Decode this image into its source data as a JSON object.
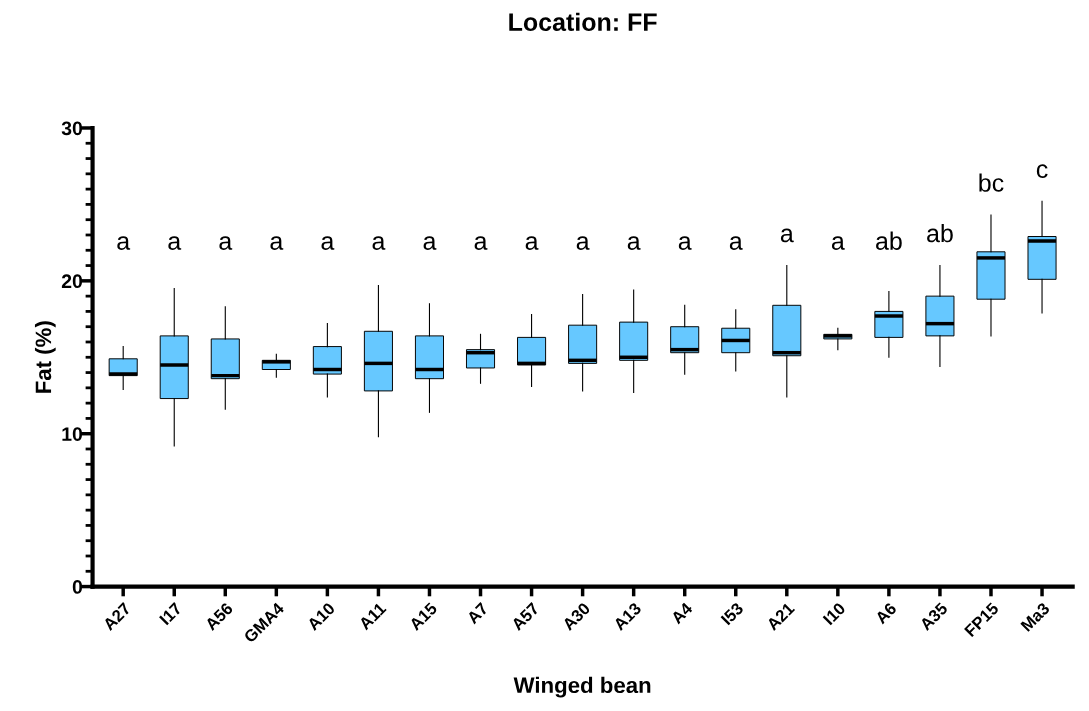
{
  "chart_data": {
    "type": "box",
    "title": "Location: FF",
    "xlabel": "Winged bean",
    "ylabel": "Fat (%)",
    "categories": [
      "A27",
      "I17",
      "A56",
      "GMA4",
      "A10",
      "A11",
      "A15",
      "A7",
      "A57",
      "A30",
      "A13",
      "A4",
      "I53",
      "A21",
      "I10",
      "A6",
      "A35",
      "FP15",
      "Ma3"
    ],
    "color": "#66c8ff",
    "boxes": [
      {
        "low": 12.9,
        "q1": 13.8,
        "median": 13.9,
        "q3": 14.9,
        "high": 15.7
      },
      {
        "low": 9.2,
        "q1": 12.3,
        "median": 14.5,
        "q3": 16.4,
        "high": 19.5
      },
      {
        "low": 11.6,
        "q1": 13.6,
        "median": 13.8,
        "q3": 16.2,
        "high": 18.3
      },
      {
        "low": 13.7,
        "q1": 14.2,
        "median": 14.7,
        "q3": 14.8,
        "high": 15.2
      },
      {
        "low": 12.4,
        "q1": 13.9,
        "median": 14.2,
        "q3": 15.7,
        "high": 17.2
      },
      {
        "low": 9.8,
        "q1": 12.8,
        "median": 14.6,
        "q3": 16.7,
        "high": 19.7
      },
      {
        "low": 11.4,
        "q1": 13.6,
        "median": 14.2,
        "q3": 16.4,
        "high": 18.5
      },
      {
        "low": 13.3,
        "q1": 14.3,
        "median": 15.3,
        "q3": 15.5,
        "high": 16.5
      },
      {
        "low": 13.1,
        "q1": 14.5,
        "median": 14.6,
        "q3": 16.3,
        "high": 17.8
      },
      {
        "low": 12.8,
        "q1": 14.6,
        "median": 14.8,
        "q3": 17.1,
        "high": 19.1
      },
      {
        "low": 12.7,
        "q1": 14.8,
        "median": 15.0,
        "q3": 17.3,
        "high": 19.4
      },
      {
        "low": 13.9,
        "q1": 15.3,
        "median": 15.5,
        "q3": 17.0,
        "high": 18.4
      },
      {
        "low": 14.1,
        "q1": 15.3,
        "median": 16.1,
        "q3": 16.9,
        "high": 18.1
      },
      {
        "low": 12.4,
        "q1": 15.1,
        "median": 15.3,
        "q3": 18.4,
        "high": 21.0
      },
      {
        "low": 15.5,
        "q1": 16.2,
        "median": 16.4,
        "q3": 16.5,
        "high": 16.9
      },
      {
        "low": 15.0,
        "q1": 16.3,
        "median": 17.7,
        "q3": 18.0,
        "high": 19.3
      },
      {
        "low": 14.4,
        "q1": 16.4,
        "median": 17.2,
        "q3": 19.0,
        "high": 21.0
      },
      {
        "low": 16.4,
        "q1": 18.8,
        "median": 21.5,
        "q3": 21.9,
        "high": 24.3
      },
      {
        "low": 17.9,
        "q1": 20.1,
        "median": 22.6,
        "q3": 22.9,
        "high": 25.2
      }
    ],
    "ylim": [
      0,
      30
    ],
    "yticks": [
      0,
      {
        "value": 1,
        "label": null
      },
      {
        "value": 2,
        "label": null
      },
      {
        "value": 3,
        "label": null
      },
      {
        "value": 4,
        "label": null
      },
      {
        "value": 5,
        "label": null
      },
      {
        "value": 6,
        "label": null
      },
      {
        "value": 7,
        "label": null
      },
      {
        "value": 8,
        "label": null
      },
      {
        "value": 9,
        "label": null
      },
      10,
      {
        "value": 11,
        "label": null
      },
      {
        "value": 12,
        "label": null
      },
      {
        "value": 13,
        "label": null
      },
      {
        "value": 14,
        "label": null
      },
      {
        "value": 15,
        "label": null
      },
      {
        "value": 16,
        "label": null
      },
      {
        "value": 17,
        "label": null
      },
      {
        "value": 18,
        "label": null
      },
      {
        "value": 19,
        "label": null
      },
      20,
      {
        "value": 21,
        "label": null
      },
      {
        "value": 22,
        "label": null
      },
      {
        "value": 23,
        "label": null
      },
      {
        "value": 24,
        "label": null
      },
      {
        "value": 25,
        "label": null
      },
      {
        "value": 26,
        "label": null
      },
      {
        "value": 27,
        "label": null
      },
      {
        "value": 28,
        "label": null
      },
      {
        "value": 29,
        "label": null
      },
      30
    ],
    "grid": false,
    "annotations": [
      "a",
      "a",
      "a",
      "a",
      "a",
      "a",
      "a",
      "a",
      "a",
      "a",
      "a",
      "a",
      "a",
      "a",
      "a",
      "ab",
      "ab",
      "bc",
      "c"
    ]
  }
}
